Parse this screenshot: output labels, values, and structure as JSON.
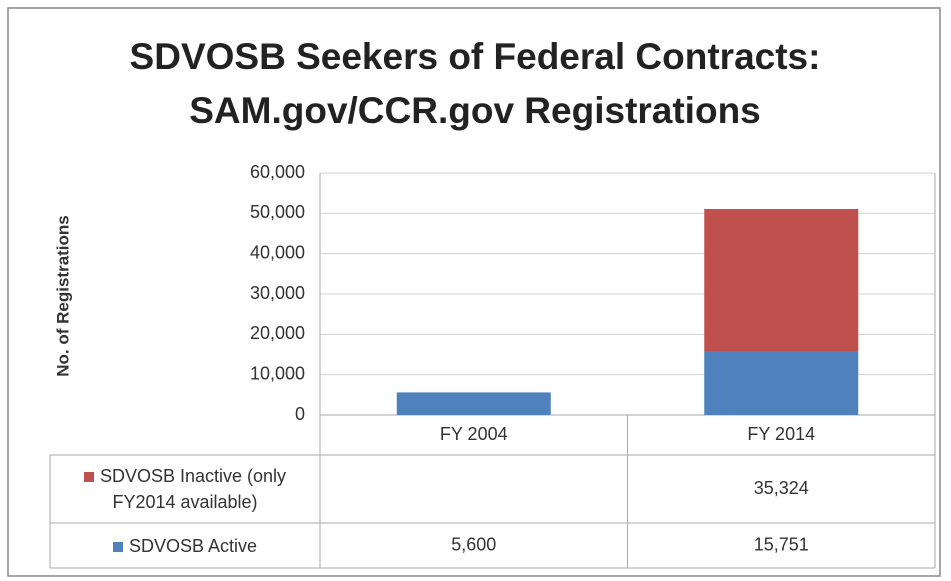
{
  "chart_data": {
    "type": "stacked_bar",
    "title": "SDVOSB Seekers of Federal Contracts: SAM.gov/CCR.gov Registrations",
    "y_axis_label": "No. of Registrations",
    "categories": [
      "FY 2004",
      "FY 2014"
    ],
    "series": [
      {
        "name": "SDVOSB Active",
        "color": "#4f81bd",
        "values": [
          5600,
          15751
        ],
        "value_labels": [
          "5,600",
          "15,751"
        ]
      },
      {
        "name": "SDVOSB Inactive (only FY2014 available)",
        "color": "#c0504d",
        "values": [
          null,
          35324
        ],
        "value_labels": [
          null,
          "35,324"
        ]
      }
    ],
    "ylim": [
      0,
      60000
    ],
    "yticks": [
      0,
      {
        "value": 10000,
        "label": "10,000"
      },
      {
        "value": 20000,
        "label": "20,000"
      },
      {
        "value": 30000,
        "label": "30,000"
      },
      {
        "value": 40000,
        "label": "40,000"
      },
      {
        "value": 50000,
        "label": "50,000"
      },
      {
        "value": 60000,
        "label": "60,000"
      }
    ],
    "grid": true,
    "data_table": true
  }
}
